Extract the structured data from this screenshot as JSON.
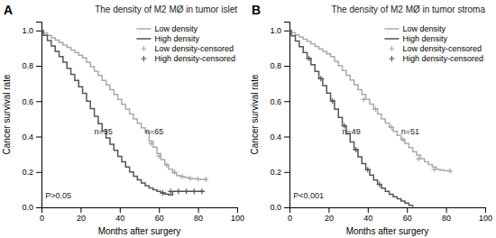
{
  "chart_data": [
    {
      "type": "step",
      "title": "The density of M2 MØ in tumor islet",
      "xlabel": "Months after surgery",
      "ylabel": "Cancer survival rate",
      "annotations": [
        "A",
        "n=35",
        "n=65",
        "P>0.05"
      ],
      "xlim": [
        0,
        100
      ],
      "ylim": [
        0.0,
        1.05
      ],
      "xticks": [
        0,
        20,
        40,
        60,
        80,
        100
      ],
      "yticks": [
        {
          "value": 0.0,
          "label": "0.0"
        },
        0.2,
        0.4,
        0.6,
        0.8,
        {
          "value": 1.0,
          "label": "1.0"
        }
      ],
      "grid": false,
      "legend": "top-right",
      "series": [
        {
          "name": "Low density",
          "type": "line",
          "line_style": "step",
          "color": "#aaaaaa",
          "x": [
            0,
            1,
            3,
            5,
            7,
            9,
            11,
            13,
            15,
            17,
            19,
            21,
            23,
            25,
            27,
            29,
            31,
            33,
            35,
            37,
            39,
            41,
            43,
            45,
            47,
            49,
            51,
            53,
            55,
            57,
            59,
            61,
            63,
            65,
            67,
            69,
            71,
            73,
            75,
            77,
            79,
            81,
            83,
            85
          ],
          "values": [
            1.0,
            0.985,
            0.972,
            0.958,
            0.945,
            0.932,
            0.918,
            0.905,
            0.89,
            0.875,
            0.86,
            0.845,
            0.82,
            0.795,
            0.77,
            0.745,
            0.718,
            0.692,
            0.665,
            0.638,
            0.61,
            0.582,
            0.555,
            0.527,
            0.5,
            0.475,
            0.45,
            0.425,
            0.375,
            0.34,
            0.305,
            0.27,
            0.24,
            0.215,
            0.195,
            0.18,
            0.175,
            0.17,
            0.165,
            0.162,
            0.16,
            0.158,
            0.158,
            0.158
          ]
        },
        {
          "name": "High density",
          "type": "line",
          "line_style": "step",
          "color": "#555555",
          "x": [
            0,
            1,
            3,
            5,
            7,
            9,
            11,
            13,
            15,
            17,
            19,
            21,
            23,
            25,
            27,
            29,
            31,
            33,
            35,
            37,
            39,
            41,
            43,
            45,
            47,
            49,
            51,
            53,
            55,
            57,
            59,
            61,
            63,
            65,
            67,
            69,
            71,
            73,
            75,
            77,
            79,
            81,
            83
          ],
          "values": [
            1.0,
            0.972,
            0.943,
            0.913,
            0.882,
            0.852,
            0.82,
            0.786,
            0.752,
            0.717,
            0.682,
            0.645,
            0.6,
            0.558,
            0.515,
            0.473,
            0.432,
            0.393,
            0.357,
            0.322,
            0.288,
            0.258,
            0.228,
            0.2,
            0.176,
            0.155,
            0.137,
            0.122,
            0.11,
            0.1,
            0.09,
            0.082,
            0.075,
            0.07,
            0.09,
            0.09,
            0.09,
            0.09,
            0.09,
            0.09,
            0.09,
            0.09,
            0.09
          ]
        },
        {
          "name": "Low density-censored",
          "type": "scatter",
          "marker": "plus",
          "color": "#aaaaaa",
          "x": [
            56,
            60,
            64,
            68,
            72,
            76,
            80,
            84
          ],
          "values": [
            0.36,
            0.29,
            0.24,
            0.2,
            0.175,
            0.165,
            0.16,
            0.158
          ]
        },
        {
          "name": "High density-censored",
          "type": "scatter",
          "marker": "plus",
          "color": "#555555",
          "x": [
            62,
            66,
            70,
            74,
            78,
            82
          ],
          "values": [
            0.082,
            0.09,
            0.09,
            0.09,
            0.09,
            0.09
          ]
        }
      ]
    },
    {
      "type": "step",
      "title": "The density of M2 MØ in tumor stroma",
      "xlabel": "Months after surgery",
      "ylabel": "Cancer survival rate",
      "annotations": [
        "B",
        "n=49",
        "n=51",
        "P<0.001"
      ],
      "xlim": [
        0,
        100
      ],
      "ylim": [
        0.0,
        1.05
      ],
      "xticks": [
        0,
        20,
        40,
        60,
        80,
        100
      ],
      "yticks": [
        {
          "value": 0.0,
          "label": "0.0"
        },
        0.2,
        0.4,
        0.6,
        0.8,
        {
          "value": 1.0,
          "label": "1.0"
        }
      ],
      "grid": false,
      "legend": "top-right",
      "series": [
        {
          "name": "Low density",
          "type": "line",
          "line_style": "step",
          "color": "#aaaaaa",
          "x": [
            0,
            1,
            3,
            5,
            7,
            9,
            11,
            13,
            15,
            17,
            19,
            21,
            23,
            25,
            27,
            29,
            31,
            33,
            35,
            37,
            39,
            41,
            43,
            45,
            47,
            49,
            51,
            53,
            55,
            57,
            59,
            61,
            63,
            65,
            67,
            69,
            71,
            73,
            75,
            77,
            79,
            81,
            83
          ],
          "values": [
            1.0,
            0.988,
            0.975,
            0.963,
            0.95,
            0.938,
            0.924,
            0.91,
            0.896,
            0.882,
            0.868,
            0.852,
            0.826,
            0.8,
            0.773,
            0.747,
            0.72,
            0.693,
            0.665,
            0.638,
            0.61,
            0.583,
            0.555,
            0.528,
            0.5,
            0.477,
            0.453,
            0.43,
            0.407,
            0.383,
            0.36,
            0.338,
            0.315,
            0.295,
            0.275,
            0.258,
            0.242,
            0.228,
            0.215,
            0.21,
            0.208,
            0.206,
            0.206
          ]
        },
        {
          "name": "High density",
          "type": "line",
          "line_style": "step",
          "color": "#555555",
          "x": [
            0,
            1,
            3,
            5,
            7,
            9,
            11,
            13,
            15,
            17,
            19,
            21,
            23,
            25,
            27,
            29,
            31,
            33,
            35,
            37,
            39,
            41,
            43,
            45,
            47,
            49,
            51,
            53,
            55,
            57,
            59,
            61,
            63
          ],
          "values": [
            1.0,
            0.97,
            0.94,
            0.908,
            0.875,
            0.842,
            0.806,
            0.768,
            0.728,
            0.688,
            0.646,
            0.602,
            0.555,
            0.508,
            0.461,
            0.415,
            0.37,
            0.326,
            0.285,
            0.247,
            0.213,
            0.182,
            0.154,
            0.13,
            0.108,
            0.09,
            0.074,
            0.06,
            0.048,
            0.036,
            0.024,
            0.012,
            0.002
          ]
        },
        {
          "name": "Low density-censored",
          "type": "scatter",
          "marker": "plus",
          "color": "#aaaaaa",
          "x": [
            38,
            44,
            52,
            58,
            66,
            74,
            82
          ],
          "values": [
            0.61,
            0.555,
            0.453,
            0.383,
            0.275,
            0.215,
            0.206
          ]
        },
        {
          "name": "High density-censored",
          "type": "scatter",
          "marker": "plus",
          "color": "#555555",
          "x": [
            10,
            16,
            22,
            28,
            34,
            40,
            46
          ],
          "values": [
            0.842,
            0.728,
            0.602,
            0.461,
            0.326,
            0.213,
            0.13
          ]
        }
      ]
    }
  ]
}
